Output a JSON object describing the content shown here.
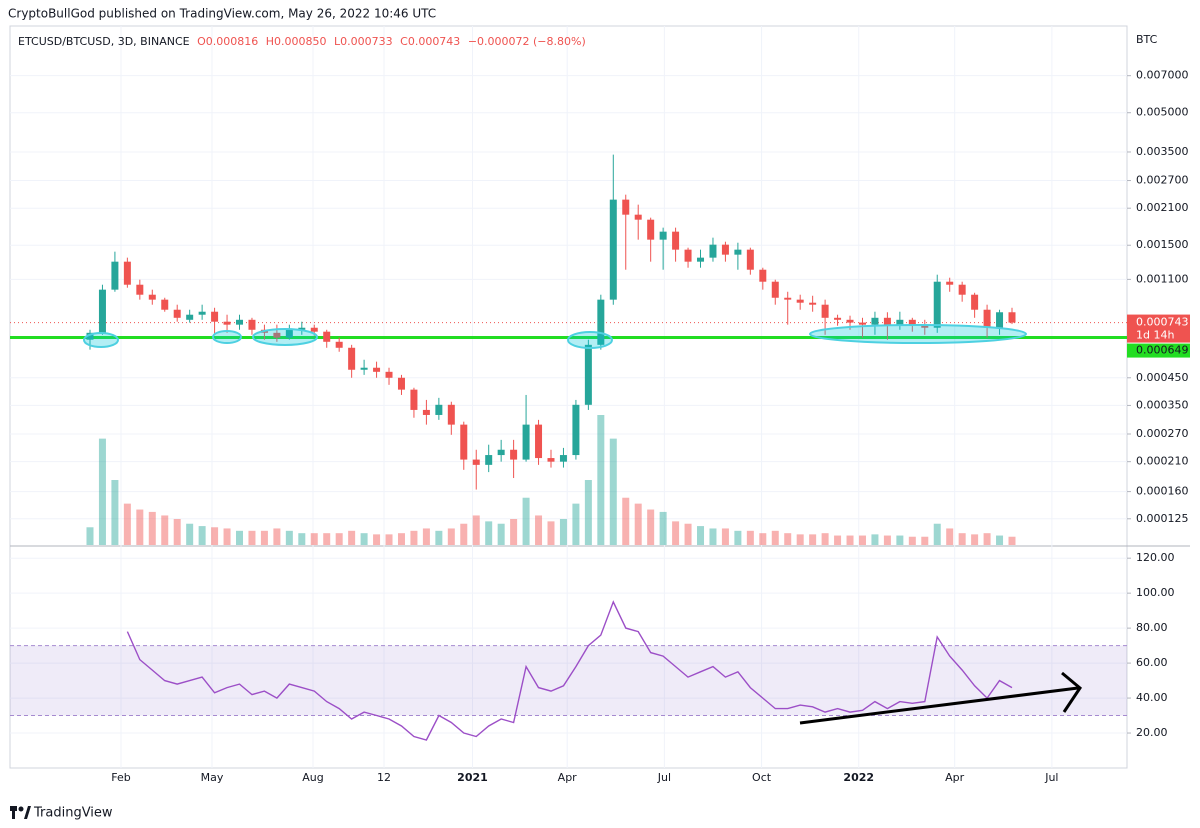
{
  "header": {
    "published": "CryptoBullGod published on TradingView.com, May 26, 2022 10:46 UTC"
  },
  "footer": {
    "brand": "TradingView"
  },
  "chart_data": [
    {
      "type": "candlestick",
      "title": "ETCUSD/BTCUSD, 3D, BINANCE",
      "legend": {
        "open": "O0.000816",
        "high": "H0.000850",
        "low": "L0.000733",
        "close": "C0.000743",
        "change": "−0.000072 (−8.80%)"
      },
      "unit": "BTC",
      "log_scale": true,
      "grid": true,
      "up_color": "#26a69a",
      "down_color": "#ef5350",
      "xlim": [
        -6.42,
        83.23
      ],
      "xticks": [
        {
          "value": 2.49,
          "label": "Feb"
        },
        {
          "value": 9.79,
          "label": "May"
        },
        {
          "value": 17.9,
          "label": "Aug"
        },
        {
          "value": 23.6,
          "label": "12"
        },
        {
          "value": 30.7,
          "label": "2021"
        },
        {
          "value": 38.3,
          "label": "Apr"
        },
        {
          "value": 46.1,
          "label": "Jul"
        },
        {
          "value": 53.9,
          "label": "Oct"
        },
        {
          "value": 61.7,
          "label": "2022"
        },
        {
          "value": 69.4,
          "label": "Apr"
        },
        {
          "value": 77.2,
          "label": "Jul"
        }
      ],
      "ylim": [
        9.85e-05,
        0.0106
      ],
      "yticks": [
        {
          "value": 0.007,
          "label": "0.007000"
        },
        {
          "value": 0.005,
          "label": "0.005000"
        },
        {
          "value": 0.0035,
          "label": "0.003500"
        },
        {
          "value": 0.0027,
          "label": "0.002700"
        },
        {
          "value": 0.0021,
          "label": "0.002100"
        },
        {
          "value": 0.0015,
          "label": "0.001500"
        },
        {
          "value": 0.0011,
          "label": "0.001100"
        },
        {
          "value": 0.00045,
          "label": "0.000450"
        },
        {
          "value": 0.00035,
          "label": "0.000350"
        },
        {
          "value": 0.00027,
          "label": "0.000270"
        },
        {
          "value": 0.00021,
          "label": "0.000210"
        },
        {
          "value": 0.00016,
          "label": "0.000160"
        },
        {
          "value": 0.000125,
          "label": "0.000125"
        }
      ],
      "open": [
        0.000636,
        0.000677,
        0.001002,
        0.001292,
        0.001048,
        0.000957,
        0.000915,
        0.000835,
        0.000762,
        0.000798,
        0.00082,
        0.000749,
        0.000729,
        0.000762,
        0.000696,
        0.000677,
        0.000648,
        0.000696,
        0.000709,
        0.000684,
        0.000624,
        0.000591,
        0.000484,
        0.000493,
        0.000475,
        0.00045,
        0.000404,
        0.000336,
        0.000321,
        0.000352,
        0.000294,
        0.000214,
        0.000204,
        0.000223,
        0.000234,
        0.000214,
        0.000294,
        0.000217,
        0.00021,
        0.000223,
        0.000352,
        0.000607,
        0.000915,
        0.00227,
        0.00198,
        0.001892,
        0.001578,
        0.001697,
        0.001441,
        0.001292,
        0.00134,
        0.001508,
        0.001377,
        0.001441,
        0.001201,
        0.001077,
        0.000931,
        0.000915,
        0.00089,
        0.000874,
        0.000776,
        0.000762,
        0.000743,
        0.000729,
        0.000776,
        0.000722,
        0.000762,
        0.000722,
        0.000709,
        0.001077,
        0.001048,
        0.000957,
        0.000835,
        0.000709,
        0.000816
      ],
      "high": [
        0.000696,
        0.001048,
        0.001415,
        0.00134,
        0.001097,
        0.001002,
        0.000931,
        0.000874,
        0.000835,
        0.000874,
        0.00085,
        0.000798,
        0.000798,
        0.000776,
        0.000729,
        0.000729,
        0.000729,
        0.000749,
        0.000729,
        0.000696,
        0.000648,
        0.000607,
        0.00053,
        0.000521,
        0.000493,
        0.000462,
        0.000411,
        0.000368,
        0.000375,
        0.000362,
        0.000302,
        0.000234,
        0.000245,
        0.000256,
        0.000256,
        0.000385,
        0.000307,
        0.000234,
        0.000238,
        0.000368,
        0.000636,
        0.000957,
        0.003417,
        0.002375,
        0.002169,
        0.001927,
        0.00176,
        0.00176,
        0.001467,
        0.001441,
        0.001607,
        0.001549,
        0.001535,
        0.001467,
        0.001223,
        0.001097,
        0.000983,
        0.000957,
        0.000948,
        0.000915,
        0.000798,
        0.000791,
        0.000776,
        0.00082,
        0.000816,
        0.00082,
        0.000776,
        0.000762,
        0.001148,
        0.001117,
        0.001077,
        0.000974,
        0.000874,
        0.000835,
        0.00085
      ],
      "low": [
        0.000581,
        0.000665,
        0.000983,
        0.00102,
        0.000915,
        0.000874,
        0.00082,
        0.000749,
        0.000743,
        0.000762,
        0.000665,
        0.000677,
        0.000696,
        0.000665,
        0.000636,
        0.000624,
        0.000636,
        0.000665,
        0.000659,
        0.000591,
        0.00057,
        0.00045,
        0.000462,
        0.00045,
        0.000422,
        0.000385,
        0.000313,
        0.000294,
        0.000307,
        0.000268,
        0.000195,
        0.000163,
        0.000191,
        0.00021,
        0.000181,
        0.00021,
        0.000204,
        0.000199,
        0.000199,
        0.000214,
        0.000336,
        0.000581,
        0.000874,
        0.001201,
        0.001578,
        0.001292,
        0.001201,
        0.001292,
        0.001223,
        0.001223,
        0.001292,
        0.001292,
        0.001201,
        0.001148,
        0.001002,
        0.000874,
        0.000729,
        0.000835,
        0.00082,
        0.000665,
        0.000722,
        0.000696,
        0.000648,
        0.000665,
        0.000636,
        0.000696,
        0.000684,
        0.000665,
        0.000677,
        0.000983,
        0.000898,
        0.000776,
        0.000648,
        0.000665,
        0.000733
      ],
      "close": [
        0.000677,
        0.001002,
        0.001292,
        0.001048,
        0.000957,
        0.000915,
        0.000835,
        0.000776,
        0.000798,
        0.00082,
        0.000749,
        0.000729,
        0.000762,
        0.000696,
        0.000677,
        0.000648,
        0.000696,
        0.000709,
        0.000684,
        0.000624,
        0.000591,
        0.000484,
        0.000493,
        0.000475,
        0.00045,
        0.000404,
        0.000336,
        0.000321,
        0.000352,
        0.000294,
        0.000214,
        0.000204,
        0.000223,
        0.000234,
        0.000214,
        0.000294,
        0.000217,
        0.00021,
        0.000223,
        0.000352,
        0.000607,
        0.000915,
        0.00227,
        0.00198,
        0.001892,
        0.001578,
        0.001697,
        0.001441,
        0.001292,
        0.00134,
        0.001508,
        0.001377,
        0.001441,
        0.001201,
        0.001077,
        0.000931,
        0.000915,
        0.00089,
        0.000874,
        0.000776,
        0.000762,
        0.000743,
        0.000729,
        0.000776,
        0.000722,
        0.000762,
        0.000722,
        0.000709,
        0.001077,
        0.001048,
        0.000957,
        0.000835,
        0.000709,
        0.000816,
        0.000743
      ],
      "volume": [
        15,
        90,
        55,
        35,
        30,
        28,
        25,
        22,
        18,
        16,
        15,
        14,
        12,
        12,
        12,
        14,
        12,
        10,
        10,
        10,
        10,
        12,
        10,
        9,
        9,
        10,
        12,
        14,
        12,
        14,
        18,
        25,
        20,
        18,
        22,
        40,
        25,
        20,
        22,
        35,
        55,
        110,
        90,
        40,
        35,
        30,
        28,
        20,
        18,
        16,
        14,
        14,
        12,
        12,
        10,
        12,
        10,
        9,
        9,
        10,
        8,
        8,
        8,
        9,
        8,
        8,
        7,
        7,
        18,
        14,
        10,
        9,
        10,
        8,
        7
      ],
      "last_label": "0.000743",
      "countdown": "1d 14h",
      "level": {
        "value": 0.000649,
        "label": "0.000649"
      },
      "level_color": "#22dd22"
    },
    {
      "type": "line",
      "color": "#9c4fc7",
      "band": [
        30,
        70
      ],
      "band_color": "#7e57c2",
      "ylim": [
        0,
        126.4
      ],
      "yticks": [
        {
          "value": 120,
          "label": "120.00"
        },
        {
          "value": 100,
          "label": "100.00"
        },
        {
          "value": 80,
          "label": "80.00"
        },
        {
          "value": 60,
          "label": "60.00"
        },
        {
          "value": 40,
          "label": "40.00"
        },
        {
          "value": 20,
          "label": "20.00"
        }
      ],
      "values": [
        null,
        null,
        null,
        78,
        62,
        56,
        50,
        48,
        50,
        52,
        43,
        46,
        48,
        42,
        44,
        40,
        48,
        46,
        44,
        38,
        34,
        28,
        32,
        30,
        28,
        24,
        18,
        16,
        30,
        26,
        20,
        18,
        24,
        28,
        26,
        58,
        46,
        44,
        47,
        58,
        70,
        76,
        95,
        80,
        78,
        66,
        64,
        58,
        52,
        55,
        58,
        52,
        55,
        46,
        40,
        34,
        34,
        36,
        35,
        32,
        34,
        32,
        33,
        38,
        34,
        38,
        37,
        38,
        75,
        64,
        56,
        47,
        40,
        50,
        46
      ]
    }
  ]
}
